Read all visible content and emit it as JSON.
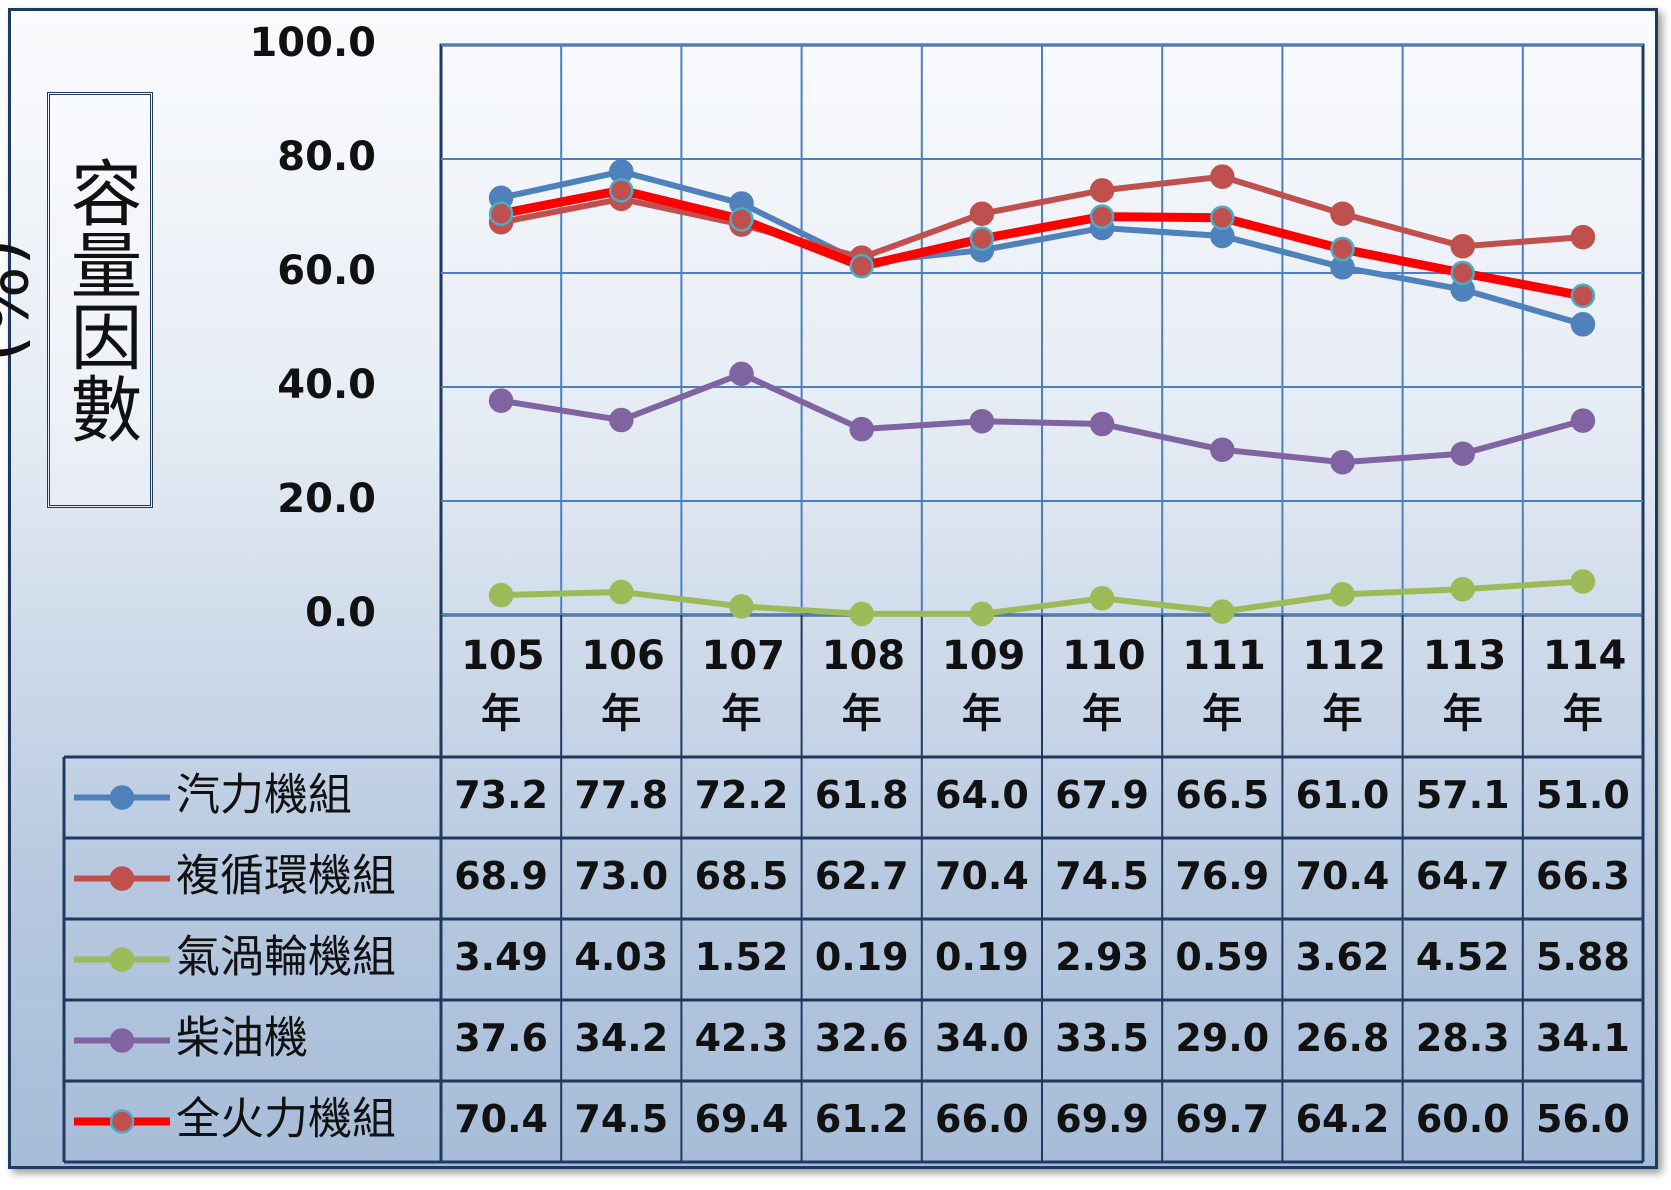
{
  "chart_data": {
    "type": "line",
    "y_label": "容量因數(%)",
    "categories": [
      "105年",
      "106年",
      "107年",
      "108年",
      "109年",
      "110年",
      "111年",
      "112年",
      "113年",
      "114年"
    ],
    "ylim": [
      0,
      100
    ],
    "yticks": [
      {
        "value": 0,
        "label": "0.0"
      },
      {
        "value": 20,
        "label": "20.0"
      },
      {
        "value": 40,
        "label": "40.0"
      },
      {
        "value": 60,
        "label": "60.0"
      },
      {
        "value": 80,
        "label": "80.0"
      },
      {
        "value": 100,
        "label": "100.0"
      }
    ],
    "grid": true,
    "series": [
      {
        "name": "汽力機組",
        "color": "#4f81bd",
        "values": [
          73.2,
          77.8,
          72.2,
          61.8,
          64.0,
          67.9,
          66.5,
          61.0,
          57.1,
          51.0
        ],
        "value_labels": [
          "73.2",
          "77.8",
          "72.2",
          "61.8",
          "64.0",
          "67.9",
          "66.5",
          "61.0",
          "57.1",
          "51.0"
        ]
      },
      {
        "name": "複循環機組",
        "color": "#c0504d",
        "values": [
          68.9,
          73.0,
          68.5,
          62.7,
          70.4,
          74.5,
          76.9,
          70.4,
          64.7,
          66.3
        ],
        "value_labels": [
          "68.9",
          "73.0",
          "68.5",
          "62.7",
          "70.4",
          "74.5",
          "76.9",
          "70.4",
          "64.7",
          "66.3"
        ]
      },
      {
        "name": "氣渦輪機組",
        "color": "#9bbb59",
        "values": [
          3.49,
          4.03,
          1.52,
          0.19,
          0.19,
          2.93,
          0.59,
          3.62,
          4.52,
          5.88
        ],
        "value_labels": [
          "3.49",
          "4.03",
          "1.52",
          "0.19",
          "0.19",
          "2.93",
          "0.59",
          "3.62",
          "4.52",
          "5.88"
        ]
      },
      {
        "name": "柴油機",
        "color": "#8064a2",
        "values": [
          37.6,
          34.2,
          42.3,
          32.6,
          34.0,
          33.5,
          29.0,
          26.8,
          28.3,
          34.1
        ],
        "value_labels": [
          "37.6",
          "34.2",
          "42.3",
          "32.6",
          "34.0",
          "33.5",
          "29.0",
          "26.8",
          "28.3",
          "34.1"
        ]
      },
      {
        "name": "全火力機組",
        "color": "#ff0000",
        "marker_color": "#c0504d",
        "marker_edge_color": "#4bacc6",
        "values": [
          70.4,
          74.5,
          69.4,
          61.2,
          66.0,
          69.9,
          69.7,
          64.2,
          60.0,
          56.0
        ],
        "value_labels": [
          "70.4",
          "74.5",
          "69.4",
          "61.2",
          "66.0",
          "69.9",
          "69.7",
          "64.2",
          "60.0",
          "56.0"
        ]
      }
    ]
  }
}
